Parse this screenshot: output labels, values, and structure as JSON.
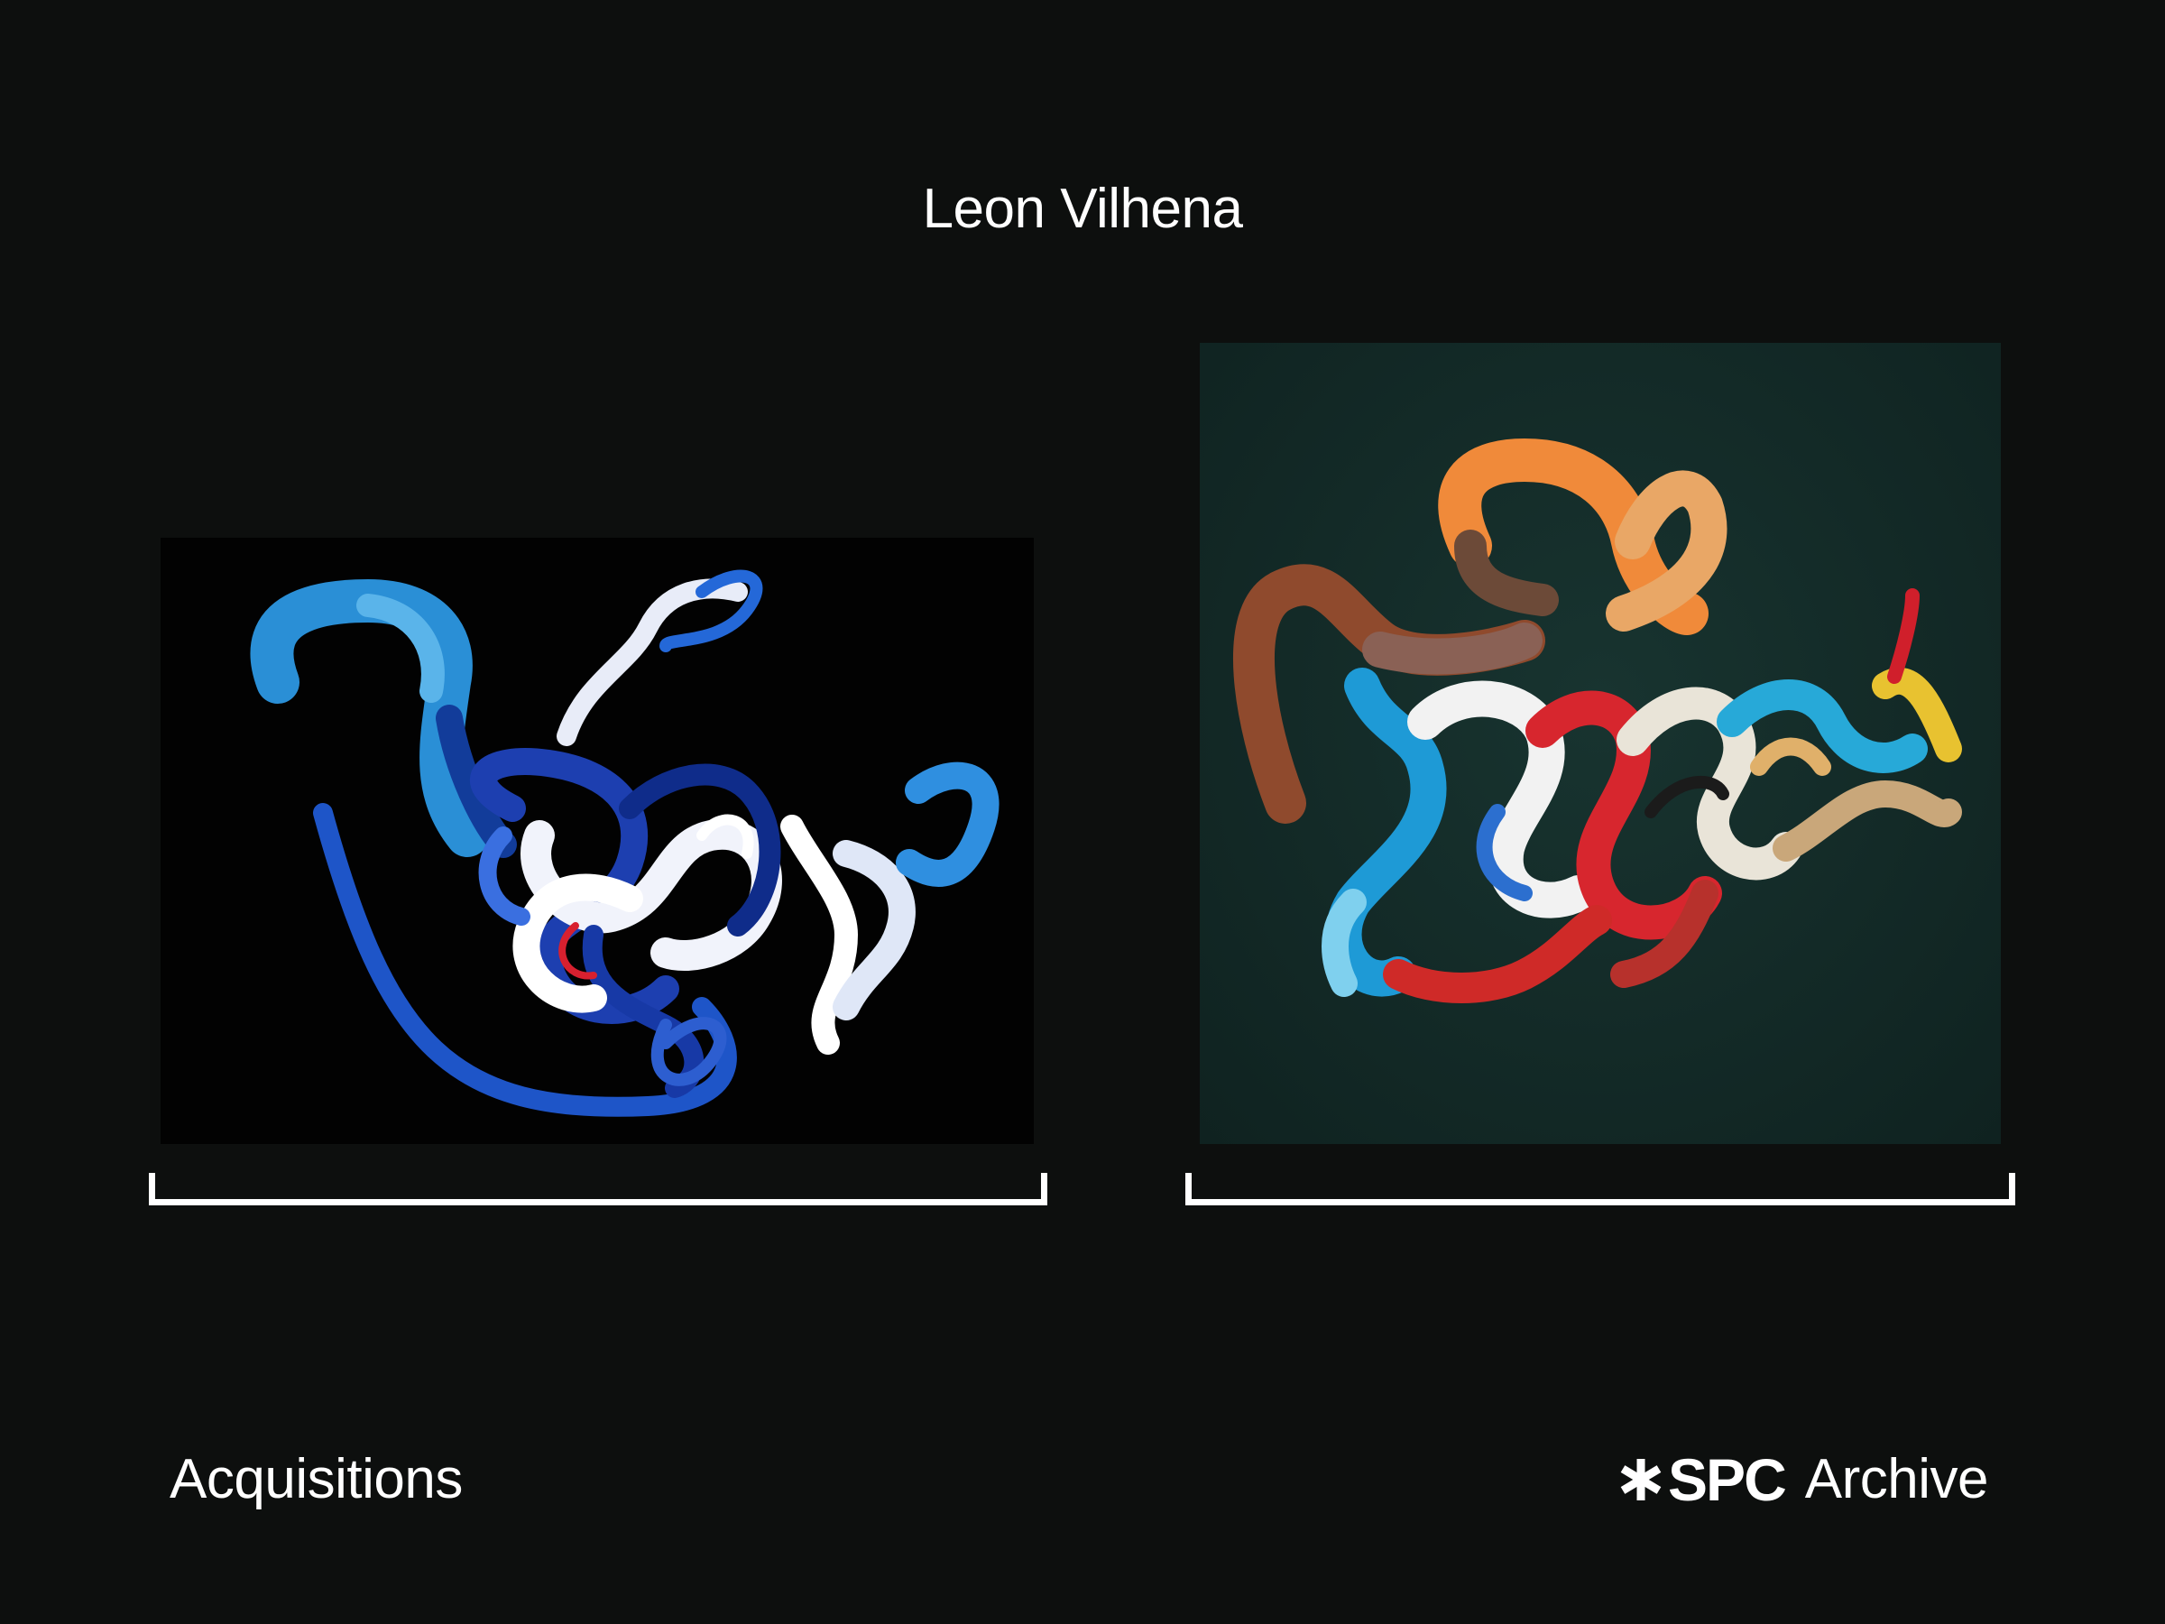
{
  "header": {
    "artist_name": "Leon Vilhena"
  },
  "artworks": [
    {
      "description_icon": "blue-ribbon-collage-image",
      "background": "#020202"
    },
    {
      "description_icon": "multicolor-ribbon-collage-image",
      "background": "#142c29"
    }
  ],
  "footer": {
    "left_label": "Acquisitions",
    "brand": "SPC",
    "brand_suffix": "Archive"
  },
  "colors": {
    "page_background": "#0d0f0e",
    "text": "#ffffff"
  }
}
